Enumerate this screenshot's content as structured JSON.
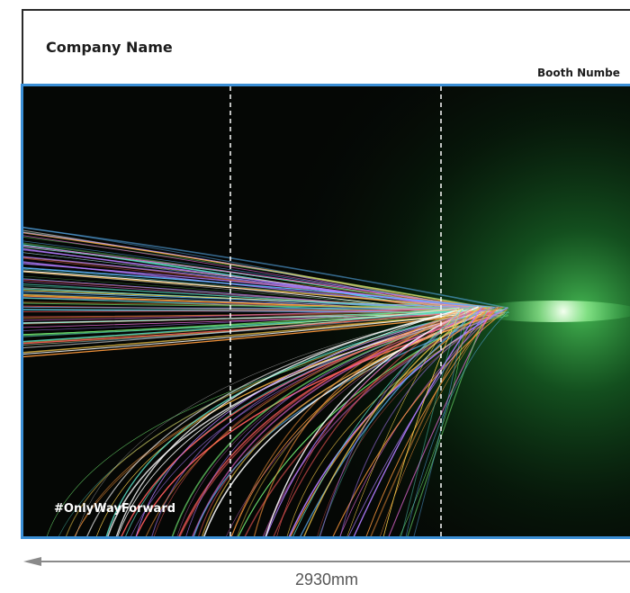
{
  "header": {
    "company_name": "Company Name",
    "booth_number": "Booth Numbe"
  },
  "graphic": {
    "hashtag": "#OnlyWayForward",
    "border_color": "#3b8fd6",
    "background_color": "#050705",
    "glow_color": "#2fbf4a"
  },
  "dimension": {
    "label": "2930mm"
  }
}
